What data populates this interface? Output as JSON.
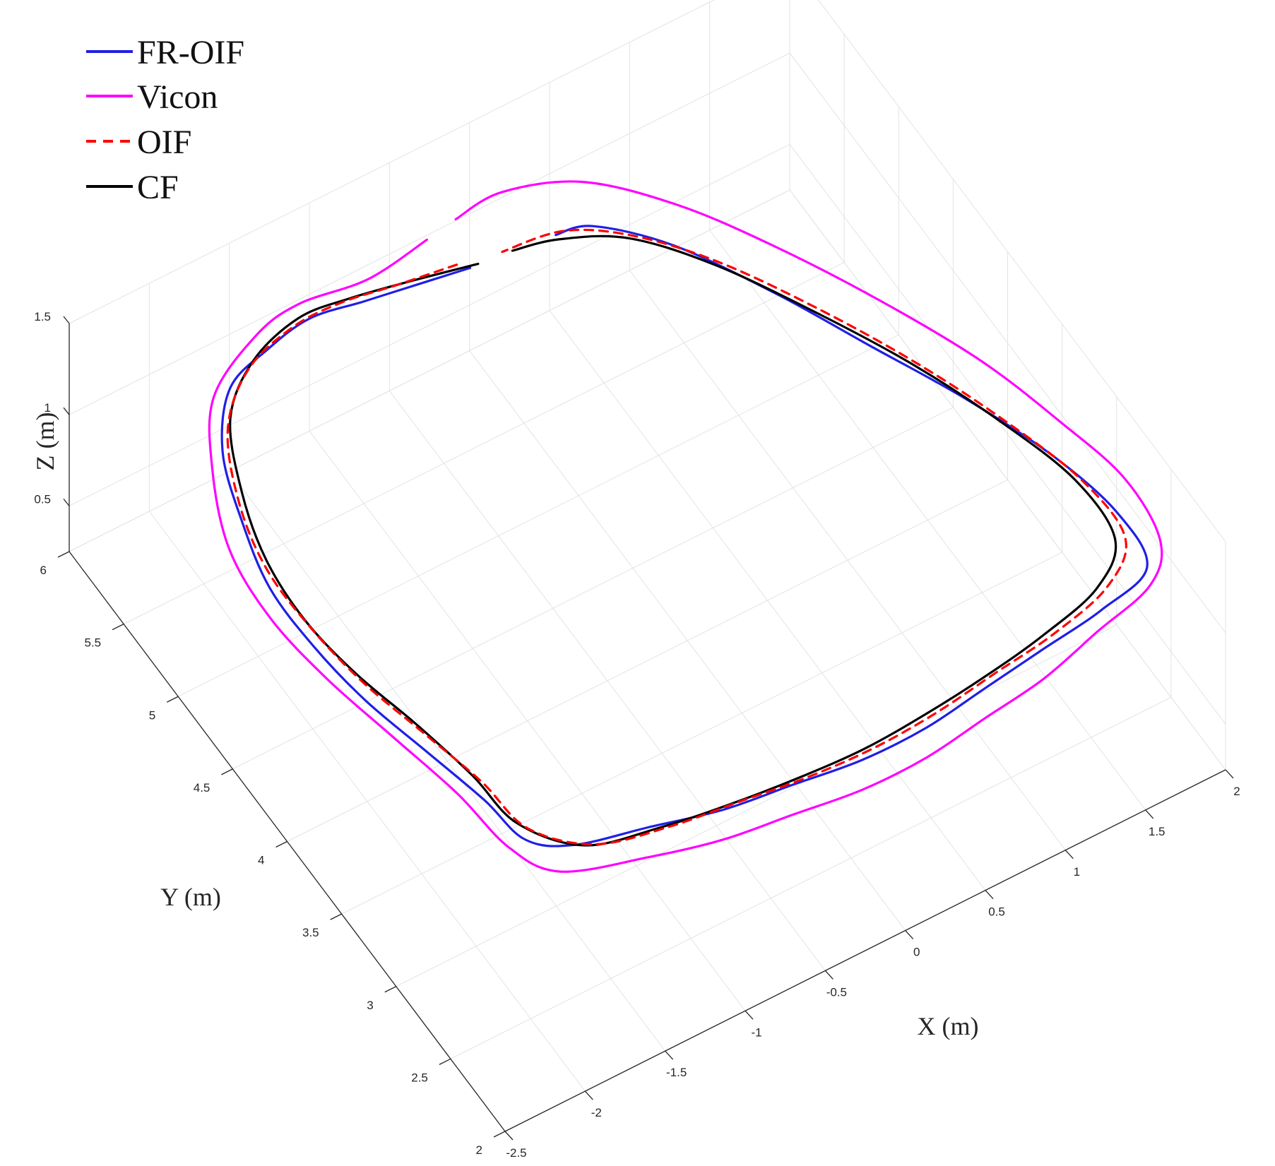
{
  "chart_data": {
    "type": "line",
    "title": "",
    "xlabel": "X (m)",
    "ylabel": "Y (m)",
    "zlabel": "Z (m)",
    "xlim": [
      -2.5,
      2
    ],
    "ylim": [
      2,
      6
    ],
    "zlim": [
      0.25,
      1.5
    ],
    "x_ticks": [
      "-2.5",
      "-2",
      "-1.5",
      "-1",
      "-0.5",
      "0",
      "0.5",
      "1",
      "1.5",
      "2"
    ],
    "y_ticks": [
      "2",
      "2.5",
      "3",
      "3.5",
      "4",
      "4.5",
      "5",
      "5.5",
      "6"
    ],
    "z_ticks": [
      "0.5",
      "1",
      "1.5"
    ],
    "grid": true,
    "legend_position": "top-left",
    "colors": {
      "FR-OIF": "#1f1fe6",
      "Vicon": "#ff00ff",
      "OIF": "#ff0000",
      "CF": "#000000",
      "axis": "#262626",
      "grid": "#e3e3e3"
    },
    "series": [
      {
        "name": "FR-OIF",
        "style": "solid",
        "points": [
          [
            -0.2,
            5.7
          ],
          [
            -0.5,
            5.75
          ],
          [
            -0.8,
            5.8
          ],
          [
            -1.1,
            5.85
          ],
          [
            -1.4,
            5.8
          ],
          [
            -1.7,
            5.7
          ],
          [
            -1.95,
            5.4
          ],
          [
            -2.1,
            5.0
          ],
          [
            -2.2,
            4.6
          ],
          [
            -2.2,
            4.2
          ],
          [
            -2.15,
            3.8
          ],
          [
            -2.05,
            3.4
          ],
          [
            -1.95,
            3.0
          ],
          [
            -1.9,
            2.7
          ],
          [
            -1.7,
            2.55
          ],
          [
            -1.3,
            2.45
          ],
          [
            -0.9,
            2.35
          ],
          [
            -0.5,
            2.3
          ],
          [
            -0.1,
            2.25
          ],
          [
            0.3,
            2.25
          ],
          [
            0.7,
            2.3
          ],
          [
            1.1,
            2.35
          ],
          [
            1.5,
            2.4
          ],
          [
            1.85,
            2.5
          ],
          [
            1.9,
            2.85
          ],
          [
            1.8,
            3.3
          ],
          [
            1.6,
            3.8
          ],
          [
            1.35,
            4.3
          ],
          [
            1.1,
            4.8
          ],
          [
            0.8,
            5.3
          ],
          [
            0.5,
            5.6
          ],
          [
            0.3,
            5.65
          ]
        ]
      },
      {
        "name": "Vicon",
        "style": "solid",
        "points": [
          [
            -0.3,
            5.95
          ],
          [
            -0.7,
            5.9
          ],
          [
            -1.1,
            5.95
          ],
          [
            -1.4,
            5.9
          ],
          [
            -1.8,
            5.7
          ],
          [
            -2.05,
            5.35
          ],
          [
            -2.25,
            4.9
          ],
          [
            -2.3,
            4.45
          ],
          [
            -2.25,
            4.0
          ],
          [
            -2.15,
            3.55
          ],
          [
            -2.05,
            3.1
          ],
          [
            -2.0,
            2.7
          ],
          [
            -1.85,
            2.45
          ],
          [
            -1.4,
            2.3
          ],
          [
            -1.0,
            2.2
          ],
          [
            -0.6,
            2.15
          ],
          [
            -0.2,
            2.1
          ],
          [
            0.2,
            2.1
          ],
          [
            0.6,
            2.15
          ],
          [
            1.0,
            2.2
          ],
          [
            1.4,
            2.3
          ],
          [
            1.8,
            2.4
          ],
          [
            2.0,
            2.6
          ],
          [
            2.05,
            3.0
          ],
          [
            1.95,
            3.45
          ],
          [
            1.8,
            3.95
          ],
          [
            1.55,
            4.5
          ],
          [
            1.25,
            5.05
          ],
          [
            0.95,
            5.5
          ],
          [
            0.6,
            5.85
          ],
          [
            0.2,
            6.0
          ],
          [
            -0.1,
            5.98
          ]
        ]
      },
      {
        "name": "OIF",
        "style": "dashed",
        "points": [
          [
            -0.25,
            5.75
          ],
          [
            -0.6,
            5.8
          ],
          [
            -0.9,
            5.85
          ],
          [
            -1.2,
            5.85
          ],
          [
            -1.55,
            5.75
          ],
          [
            -1.85,
            5.5
          ],
          [
            -2.05,
            5.1
          ],
          [
            -2.15,
            4.7
          ],
          [
            -2.15,
            4.3
          ],
          [
            -2.1,
            3.9
          ],
          [
            -2.0,
            3.5
          ],
          [
            -1.9,
            3.1
          ],
          [
            -1.85,
            2.75
          ],
          [
            -1.6,
            2.5
          ],
          [
            -1.2,
            2.4
          ],
          [
            -0.8,
            2.35
          ],
          [
            -0.4,
            2.3
          ],
          [
            0.0,
            2.28
          ],
          [
            0.4,
            2.3
          ],
          [
            0.8,
            2.35
          ],
          [
            1.2,
            2.4
          ],
          [
            1.6,
            2.5
          ],
          [
            1.85,
            2.7
          ],
          [
            1.85,
            3.1
          ],
          [
            1.7,
            3.6
          ],
          [
            1.5,
            4.1
          ],
          [
            1.25,
            4.6
          ],
          [
            0.95,
            5.1
          ],
          [
            0.65,
            5.45
          ],
          [
            0.35,
            5.65
          ],
          [
            0.0,
            5.7
          ]
        ]
      },
      {
        "name": "CF",
        "style": "solid",
        "points": [
          [
            -0.15,
            5.7
          ],
          [
            -0.5,
            5.78
          ],
          [
            -0.85,
            5.85
          ],
          [
            -1.15,
            5.88
          ],
          [
            -1.5,
            5.78
          ],
          [
            -1.8,
            5.55
          ],
          [
            -2.0,
            5.15
          ],
          [
            -2.12,
            4.75
          ],
          [
            -2.15,
            4.35
          ],
          [
            -2.1,
            3.95
          ],
          [
            -2.0,
            3.55
          ],
          [
            -1.92,
            3.15
          ],
          [
            -1.88,
            2.8
          ],
          [
            -1.65,
            2.52
          ],
          [
            -1.25,
            2.42
          ],
          [
            -0.85,
            2.36
          ],
          [
            -0.45,
            2.32
          ],
          [
            -0.05,
            2.3
          ],
          [
            0.35,
            2.32
          ],
          [
            0.75,
            2.36
          ],
          [
            1.15,
            2.42
          ],
          [
            1.55,
            2.52
          ],
          [
            1.8,
            2.72
          ],
          [
            1.82,
            3.12
          ],
          [
            1.68,
            3.6
          ],
          [
            1.48,
            4.1
          ],
          [
            1.22,
            4.6
          ],
          [
            0.92,
            5.1
          ],
          [
            0.62,
            5.45
          ],
          [
            0.3,
            5.62
          ],
          [
            0.05,
            5.68
          ]
        ]
      }
    ]
  },
  "legend": {
    "items": [
      {
        "label": "FR-OIF"
      },
      {
        "label": "Vicon"
      },
      {
        "label": "OIF"
      },
      {
        "label": "CF"
      }
    ]
  }
}
